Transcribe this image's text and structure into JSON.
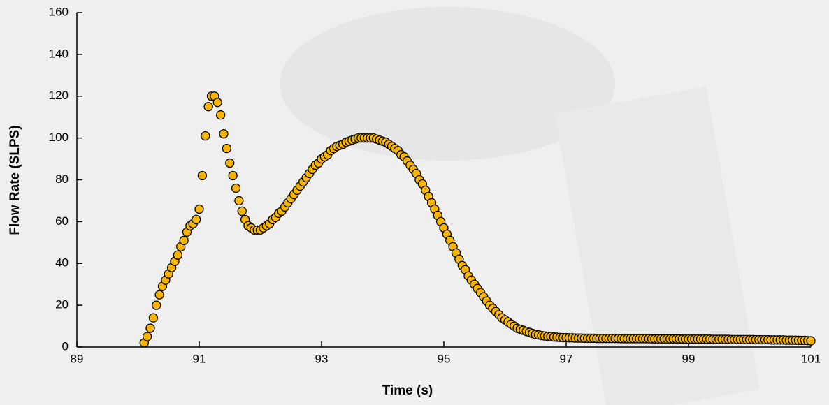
{
  "chart_data": {
    "type": "scatter",
    "x_label": "Time (s)",
    "y_label": "Flow Rate (SLPS)",
    "color": "#f7b500",
    "xlim": [
      89,
      101
    ],
    "xticks": [
      89,
      91,
      93,
      95,
      97,
      99,
      101
    ],
    "ylim": [
      0,
      160
    ],
    "yticks": [
      0,
      20,
      40,
      60,
      80,
      100,
      120,
      140,
      160
    ],
    "x": [
      90.1,
      90.15,
      90.2,
      90.25,
      90.3,
      90.35,
      90.4,
      90.45,
      90.5,
      90.55,
      90.6,
      90.65,
      90.7,
      90.75,
      90.8,
      90.85,
      90.9,
      90.95,
      91.0,
      91.05,
      91.1,
      91.15,
      91.2,
      91.25,
      91.3,
      91.35,
      91.4,
      91.45,
      91.5,
      91.55,
      91.6,
      91.65,
      91.7,
      91.75,
      91.8,
      91.85,
      91.9,
      91.95,
      92.0,
      92.05,
      92.1,
      92.15,
      92.2,
      92.25,
      92.3,
      92.35,
      92.4,
      92.45,
      92.5,
      92.55,
      92.6,
      92.65,
      92.7,
      92.75,
      92.8,
      92.85,
      92.9,
      92.95,
      93.0,
      93.05,
      93.1,
      93.15,
      93.2,
      93.25,
      93.3,
      93.35,
      93.4,
      93.45,
      93.5,
      93.55,
      93.6,
      93.65,
      93.7,
      93.75,
      93.8,
      93.85,
      93.9,
      93.95,
      94.0,
      94.05,
      94.1,
      94.15,
      94.2,
      94.25,
      94.3,
      94.35,
      94.4,
      94.45,
      94.5,
      94.55,
      94.6,
      94.65,
      94.7,
      94.75,
      94.8,
      94.85,
      94.9,
      94.95,
      95.0,
      95.05,
      95.1,
      95.15,
      95.2,
      95.25,
      95.3,
      95.35,
      95.4,
      95.45,
      95.5,
      95.55,
      95.6,
      95.65,
      95.7,
      95.75,
      95.8,
      95.85,
      95.9,
      95.95,
      96.0,
      96.05,
      96.1,
      96.15,
      96.2,
      96.25,
      96.3,
      96.35,
      96.4,
      96.45,
      96.5,
      96.55,
      96.6,
      96.65,
      96.7,
      96.75,
      96.8,
      96.85,
      96.9,
      96.95,
      97.0,
      97.05,
      97.1,
      97.15,
      97.2,
      97.25,
      97.3,
      97.35,
      97.4,
      97.45,
      97.5,
      97.55,
      97.6,
      97.65,
      97.7,
      97.75,
      97.8,
      97.85,
      97.9,
      97.95,
      98.0,
      98.05,
      98.1,
      98.15,
      98.2,
      98.25,
      98.3,
      98.35,
      98.4,
      98.45,
      98.5,
      98.55,
      98.6,
      98.65,
      98.7,
      98.75,
      98.8,
      98.85,
      98.9,
      98.95,
      99.0,
      99.05,
      99.1,
      99.15,
      99.2,
      99.25,
      99.3,
      99.35,
      99.4,
      99.45,
      99.5,
      99.55,
      99.6,
      99.65,
      99.7,
      99.75,
      99.8,
      99.85,
      99.9,
      99.95,
      100.0,
      100.05,
      100.1,
      100.15,
      100.2,
      100.25,
      100.3,
      100.35,
      100.4,
      100.45,
      100.5,
      100.55,
      100.6,
      100.65,
      100.7,
      100.75,
      100.8,
      100.85,
      100.9,
      100.95,
      101.0
    ],
    "values": [
      2,
      5,
      9,
      14,
      20,
      25,
      29,
      32,
      35,
      38,
      41,
      44,
      48,
      51,
      55,
      58,
      59,
      61,
      66,
      82,
      101,
      115,
      120,
      120,
      117,
      111,
      102,
      95,
      88,
      82,
      76,
      70,
      65,
      61,
      58,
      57,
      56,
      56,
      56,
      57,
      58,
      59,
      61,
      62,
      64,
      65,
      67,
      69,
      71,
      73,
      75,
      77,
      79,
      81,
      83,
      85,
      87,
      88,
      90,
      91,
      92,
      94,
      95,
      96,
      96.5,
      97,
      98,
      98.5,
      99,
      99.5,
      100,
      100,
      100,
      100,
      100,
      100,
      99.5,
      99,
      98.5,
      98,
      97,
      96,
      95,
      94,
      92,
      91,
      89,
      87,
      85,
      83,
      80,
      78,
      75,
      72,
      69,
      66,
      63,
      60,
      57,
      54,
      51,
      48,
      45,
      42,
      39,
      37,
      34,
      32,
      30,
      28,
      26,
      24,
      22,
      20,
      18.5,
      17,
      15.5,
      14,
      13,
      12,
      11,
      10,
      9,
      8.5,
      8,
      7.5,
      7,
      6.5,
      6,
      5.8,
      5.5,
      5.3,
      5.1,
      5,
      4.8,
      4.7,
      4.6,
      4.5,
      4.5,
      4.4,
      4.4,
      4.3,
      4.3,
      4.3,
      4.2,
      4.2,
      4.2,
      4.2,
      4.1,
      4.1,
      4.1,
      4.1,
      4.1,
      4.1,
      4.1,
      4.1,
      4.0,
      4.0,
      4.0,
      4.0,
      4.0,
      4.0,
      4.0,
      4.0,
      4.0,
      4.0,
      3.9,
      3.9,
      3.9,
      3.9,
      3.9,
      3.9,
      3.9,
      3.9,
      3.9,
      3.9,
      3.8,
      3.8,
      3.8,
      3.8,
      3.8,
      3.8,
      3.8,
      3.8,
      3.8,
      3.8,
      3.7,
      3.7,
      3.7,
      3.7,
      3.7,
      3.7,
      3.6,
      3.6,
      3.6,
      3.6,
      3.6,
      3.6,
      3.6,
      3.6,
      3.5,
      3.5,
      3.5,
      3.5,
      3.5,
      3.4,
      3.4,
      3.4,
      3.4,
      3.4,
      3.3,
      3.3,
      3.3,
      3.3,
      3.2,
      3.2,
      3.2,
      3.1,
      3.0
    ]
  }
}
